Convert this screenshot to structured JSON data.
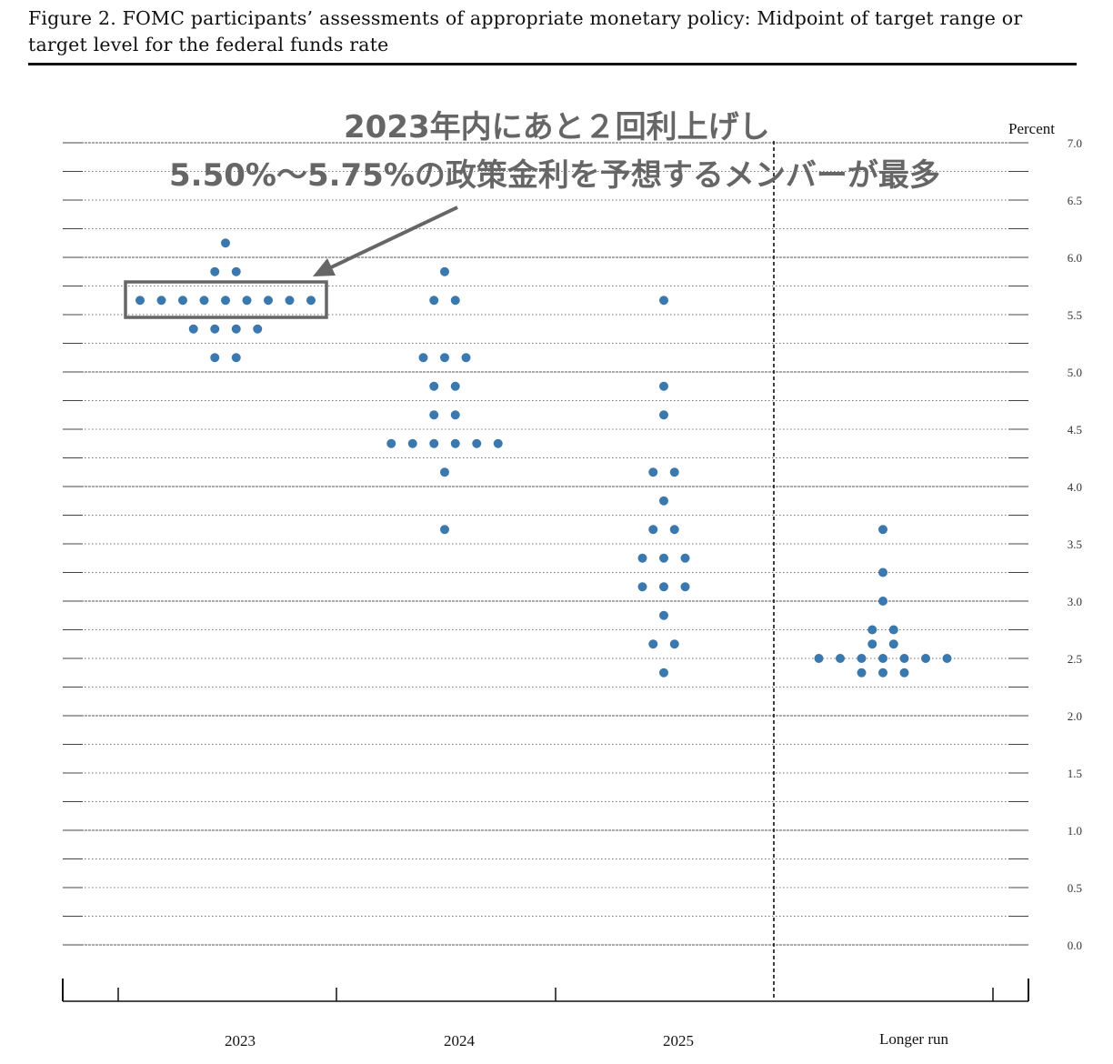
{
  "figure": {
    "title": "Figure 2.  FOMC participants’ assessments of appropriate monetary policy:  Midpoint of target range or target level for the federal funds rate"
  },
  "annotation": {
    "line1": "2023年内にあと２回利上げし",
    "line2": "5.50%～5.75%の政策金利を予想するメンバーが最多",
    "color": "#666666"
  },
  "chart_data": {
    "type": "scatter",
    "subtype": "dot-plot",
    "y_unit": "Percent",
    "ylim": [
      0,
      7
    ],
    "yticks": [
      "7.0",
      "6.5",
      "6.0",
      "5.5",
      "5.0",
      "4.5",
      "4.0",
      "3.5",
      "3.0",
      "2.5",
      "2.0",
      "1.5",
      "1.0",
      "0.5",
      "0.0"
    ],
    "categories": [
      "2023",
      "2024",
      "2025",
      "Longer run"
    ],
    "dot_color": "#3a78ad",
    "grid": "dotted every 0.25",
    "divider": "dashed line between 2025 and Longer run",
    "series": [
      {
        "category": "2023",
        "points": [
          {
            "y": 6.125,
            "count": 1
          },
          {
            "y": 5.875,
            "count": 2
          },
          {
            "y": 5.625,
            "count": 9
          },
          {
            "y": 5.375,
            "count": 4
          },
          {
            "y": 5.125,
            "count": 2
          }
        ]
      },
      {
        "category": "2024",
        "points": [
          {
            "y": 5.875,
            "count": 1
          },
          {
            "y": 5.625,
            "count": 2
          },
          {
            "y": 5.125,
            "count": 3
          },
          {
            "y": 4.875,
            "count": 2
          },
          {
            "y": 4.625,
            "count": 2
          },
          {
            "y": 4.375,
            "count": 6
          },
          {
            "y": 4.125,
            "count": 1
          },
          {
            "y": 3.625,
            "count": 1
          }
        ]
      },
      {
        "category": "2025",
        "points": [
          {
            "y": 5.625,
            "count": 1
          },
          {
            "y": 4.875,
            "count": 1
          },
          {
            "y": 4.625,
            "count": 1
          },
          {
            "y": 4.125,
            "count": 2
          },
          {
            "y": 3.875,
            "count": 1
          },
          {
            "y": 3.625,
            "count": 2
          },
          {
            "y": 3.375,
            "count": 3
          },
          {
            "y": 3.125,
            "count": 3
          },
          {
            "y": 2.875,
            "count": 1
          },
          {
            "y": 2.625,
            "count": 2
          },
          {
            "y": 2.375,
            "count": 1
          }
        ]
      },
      {
        "category": "Longer run",
        "points": [
          {
            "y": 3.625,
            "count": 1
          },
          {
            "y": 3.25,
            "count": 1
          },
          {
            "y": 3.0,
            "count": 1
          },
          {
            "y": 2.75,
            "count": 2
          },
          {
            "y": 2.625,
            "count": 2
          },
          {
            "y": 2.5,
            "count": 7
          },
          {
            "y": 2.375,
            "count": 3
          }
        ]
      }
    ],
    "highlight": {
      "category": "2023",
      "y": 5.625,
      "count": 9
    }
  }
}
